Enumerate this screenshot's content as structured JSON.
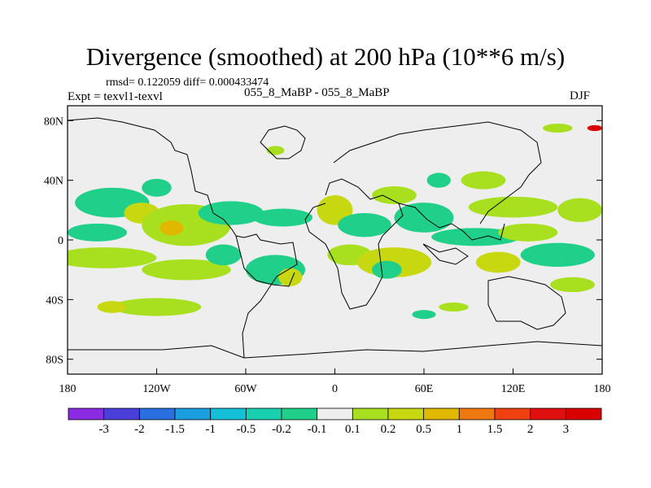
{
  "chart_data": {
    "type": "heatmap",
    "title": "Divergence (smoothed) at 200 hPa (10**6 m/s)",
    "stats_line": "rmsd= 0.122059 diff= 0.000433474",
    "experiment_label": "Expt = texvl1-texvl",
    "case_label": "055_8_MaBP - 055_8_MaBP",
    "season": "DJF",
    "x_axis": {
      "range": [
        -180,
        180
      ],
      "ticks": [
        -180,
        -120,
        -60,
        0,
        60,
        120,
        180
      ],
      "tick_labels": [
        "180",
        "120W",
        "60W",
        "0",
        "60E",
        "120E",
        "180"
      ]
    },
    "y_axis": {
      "range": [
        -90,
        90
      ],
      "ticks": [
        80,
        40,
        0,
        -40,
        -80
      ],
      "tick_labels": [
        "80N",
        "40N",
        "0",
        "40S",
        "80S"
      ]
    },
    "colorbar": {
      "labels": [
        "-3",
        "-2",
        "-1.5",
        "-1",
        "-0.5",
        "-0.2",
        "-0.1",
        "0.1",
        "0.2",
        "0.5",
        "1",
        "1.5",
        "2",
        "3"
      ],
      "colors": [
        "#8a2be2",
        "#4b3fd9",
        "#2a6fe0",
        "#1a9ee0",
        "#14c0d8",
        "#18d0b0",
        "#20d08a",
        "#eeeeee",
        "#a8e020",
        "#c8d810",
        "#e0b800",
        "#f07810",
        "#f04010",
        "#e01010",
        "#d80000"
      ]
    },
    "blobs": [
      {
        "lon": -150,
        "lat": 25,
        "rx": 25,
        "ry": 10,
        "v": -0.15
      },
      {
        "lon": -160,
        "lat": 5,
        "rx": 20,
        "ry": 6,
        "v": -0.15
      },
      {
        "lon": -130,
        "lat": 18,
        "rx": 12,
        "ry": 7,
        "v": 0.2
      },
      {
        "lon": -100,
        "lat": 10,
        "rx": 30,
        "ry": 14,
        "v": 0.15
      },
      {
        "lon": -110,
        "lat": 8,
        "rx": 8,
        "ry": 5,
        "v": 0.8
      },
      {
        "lon": -120,
        "lat": 35,
        "rx": 10,
        "ry": 6,
        "v": -0.2
      },
      {
        "lon": -70,
        "lat": 18,
        "rx": 22,
        "ry": 8,
        "v": -0.15
      },
      {
        "lon": -35,
        "lat": 15,
        "rx": 20,
        "ry": 6,
        "v": -0.15
      },
      {
        "lon": -155,
        "lat": -12,
        "rx": 35,
        "ry": 7,
        "v": 0.15
      },
      {
        "lon": -100,
        "lat": -20,
        "rx": 30,
        "ry": 7,
        "v": 0.15
      },
      {
        "lon": -75,
        "lat": -10,
        "rx": 12,
        "ry": 7,
        "v": -0.15
      },
      {
        "lon": -120,
        "lat": -45,
        "rx": 30,
        "ry": 6,
        "v": 0.15
      },
      {
        "lon": -150,
        "lat": -45,
        "rx": 10,
        "ry": 4,
        "v": 0.2
      },
      {
        "lon": -40,
        "lat": -20,
        "rx": 20,
        "ry": 10,
        "v": -0.15
      },
      {
        "lon": -30,
        "lat": -25,
        "rx": 8,
        "ry": 6,
        "v": 0.4
      },
      {
        "lon": 0,
        "lat": 20,
        "rx": 12,
        "ry": 10,
        "v": 0.2
      },
      {
        "lon": 20,
        "lat": 10,
        "rx": 18,
        "ry": 8,
        "v": -0.15
      },
      {
        "lon": 40,
        "lat": 30,
        "rx": 15,
        "ry": 6,
        "v": 0.15
      },
      {
        "lon": 60,
        "lat": 15,
        "rx": 20,
        "ry": 10,
        "v": -0.15
      },
      {
        "lon": 10,
        "lat": -10,
        "rx": 15,
        "ry": 7,
        "v": 0.15
      },
      {
        "lon": 40,
        "lat": -15,
        "rx": 25,
        "ry": 10,
        "v": 0.2
      },
      {
        "lon": 35,
        "lat": -20,
        "rx": 10,
        "ry": 6,
        "v": -0.15
      },
      {
        "lon": 95,
        "lat": 2,
        "rx": 30,
        "ry": 6,
        "v": -0.2
      },
      {
        "lon": 130,
        "lat": 5,
        "rx": 20,
        "ry": 6,
        "v": 0.15
      },
      {
        "lon": 120,
        "lat": 22,
        "rx": 30,
        "ry": 7,
        "v": 0.15
      },
      {
        "lon": 165,
        "lat": 20,
        "rx": 15,
        "ry": 8,
        "v": 0.15
      },
      {
        "lon": 150,
        "lat": -10,
        "rx": 25,
        "ry": 8,
        "v": -0.15
      },
      {
        "lon": 110,
        "lat": -15,
        "rx": 15,
        "ry": 7,
        "v": 0.2
      },
      {
        "lon": 160,
        "lat": -30,
        "rx": 15,
        "ry": 5,
        "v": 0.15
      },
      {
        "lon": 80,
        "lat": -45,
        "rx": 10,
        "ry": 3,
        "v": 0.15
      },
      {
        "lon": 60,
        "lat": -50,
        "rx": 8,
        "ry": 3,
        "v": -0.15
      },
      {
        "lon": 150,
        "lat": 75,
        "rx": 10,
        "ry": 3,
        "v": 0.15
      },
      {
        "lon": 175,
        "lat": 75,
        "rx": 5,
        "ry": 2,
        "v": 3
      },
      {
        "lon": -40,
        "lat": 60,
        "rx": 6,
        "ry": 3,
        "v": 0.15
      },
      {
        "lon": 100,
        "lat": 40,
        "rx": 15,
        "ry": 6,
        "v": 0.15
      },
      {
        "lon": 70,
        "lat": 40,
        "rx": 8,
        "ry": 5,
        "v": -0.15
      }
    ]
  }
}
